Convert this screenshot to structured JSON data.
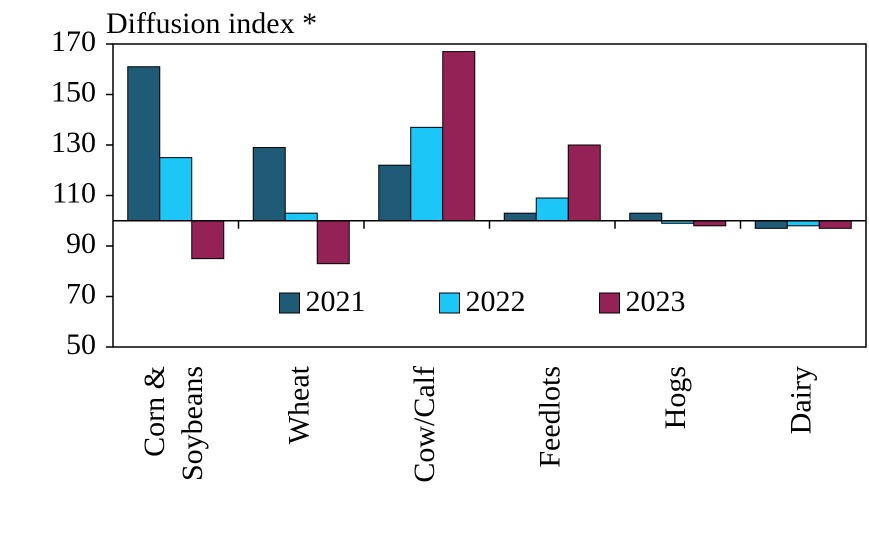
{
  "chart_data": {
    "type": "bar",
    "y_label": "Diffusion index *",
    "categories": [
      "Corn & Soybeans",
      "Wheat",
      "Cow/Calf",
      "Feedlots",
      "Hogs",
      "Dairy"
    ],
    "series": [
      {
        "name": "2021",
        "color": "#1f5b76",
        "values": [
          161,
          129,
          122,
          103,
          103,
          97
        ]
      },
      {
        "name": "2022",
        "color": "#1cc6f6",
        "values": [
          125,
          103,
          137,
          109,
          99,
          98
        ]
      },
      {
        "name": "2023",
        "color": "#952257",
        "values": [
          85,
          83,
          167,
          130,
          98,
          97
        ]
      }
    ],
    "baseline": 100,
    "ylim": [
      50,
      170
    ],
    "yticks": [
      50,
      70,
      90,
      110,
      130,
      150,
      170
    ],
    "grid": false,
    "legend": "center"
  }
}
